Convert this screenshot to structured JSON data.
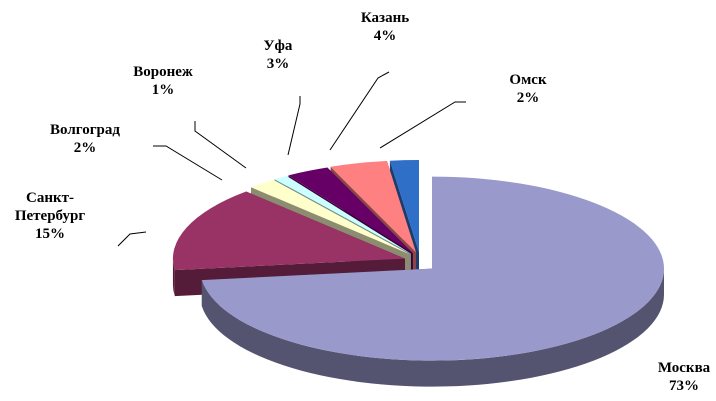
{
  "chart_data": {
    "type": "pie",
    "categories": [
      "Москва",
      "Санкт-Петербург",
      "Волгоград",
      "Воронеж",
      "Уфа",
      "Казань",
      "Омск"
    ],
    "values": [
      73,
      15,
      2,
      1,
      3,
      4,
      2
    ],
    "value_labels": [
      "73%",
      "15%",
      "2%",
      "1%",
      "3%",
      "4%",
      "2%"
    ],
    "colors": [
      "#9999cc",
      "#993366",
      "#ffffcc",
      "#ccffff",
      "#660066",
      "#ff8080",
      "#2f6fc8"
    ]
  }
}
